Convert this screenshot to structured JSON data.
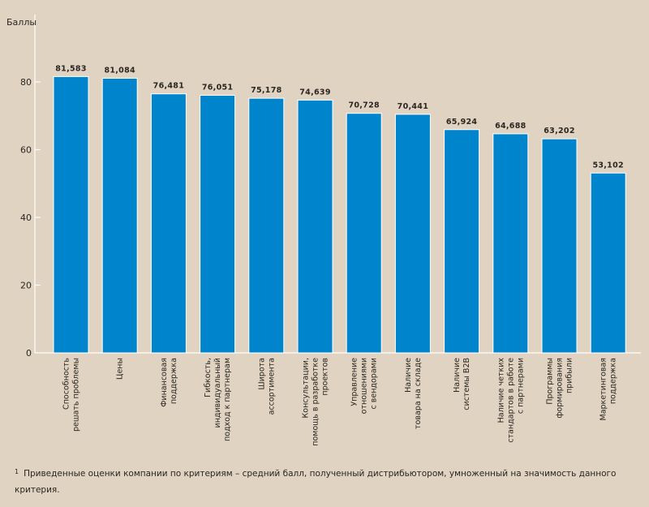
{
  "chart_data": {
    "type": "bar",
    "title": "",
    "xlabel": "",
    "ylabel": "Баллы",
    "ylim": [
      0,
      90
    ],
    "yticks": [
      0,
      20,
      40,
      60,
      80
    ],
    "ytick_labels": [
      "0",
      "20",
      "40",
      "60",
      "80"
    ],
    "grid": false,
    "bar_color": "#0084cc",
    "categories": [
      [
        "Способность",
        "решать проблемы"
      ],
      [
        "Цены"
      ],
      [
        "Финансовая",
        "поддержка"
      ],
      [
        "Гибкость,",
        "индивидуальный",
        "подход к партнерам"
      ],
      [
        "Широта",
        "ассортимента"
      ],
      [
        "Консультации,",
        "помощь в разработке",
        "проектов"
      ],
      [
        "Управление",
        "отношениями",
        "с вендорами"
      ],
      [
        "Наличие",
        "товара на складе"
      ],
      [
        "Наличие",
        "системы B2B"
      ],
      [
        "Наличие четких",
        "стандартов в работе",
        "с партнерами"
      ],
      [
        "Программы",
        "формирования",
        "прибыли"
      ],
      [
        "Маркетинговая",
        "поддержка"
      ]
    ],
    "values": [
      81.583,
      81.084,
      76.481,
      76.051,
      75.178,
      74.639,
      70.728,
      70.441,
      65.924,
      64.688,
      63.202,
      53.102
    ],
    "value_labels": [
      "81,583",
      "81,084",
      "76,481",
      "76,051",
      "75,178",
      "74,639",
      "70,728",
      "70,441",
      "65,924",
      "64,688",
      "63,202",
      "53,102"
    ]
  },
  "footnote": {
    "marker": "1",
    "text": "Приведенные оценки компании по критериям – средний балл, полученный дистрибьютором, умноженный на значимость данного критерия."
  }
}
